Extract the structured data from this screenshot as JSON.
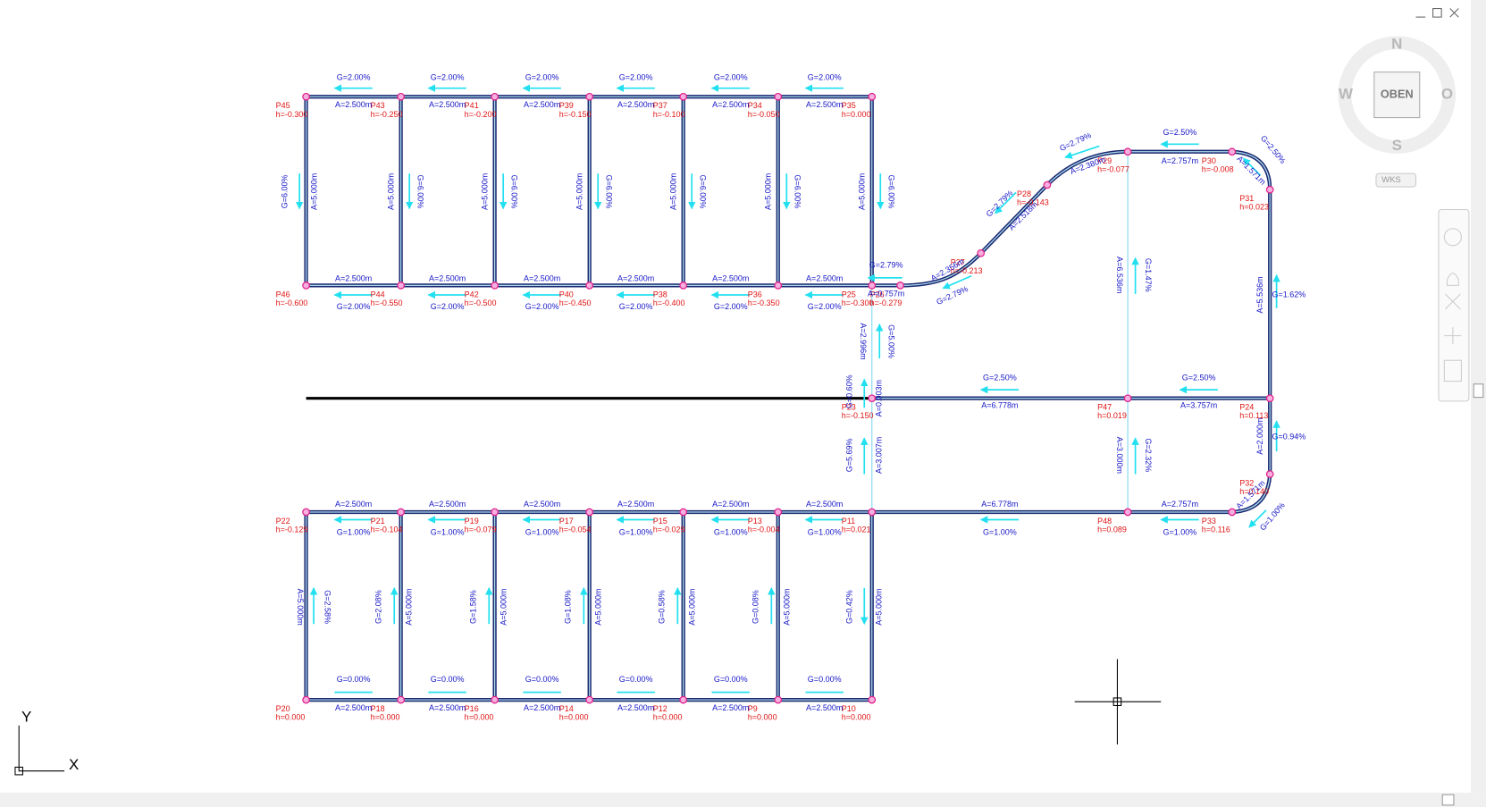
{
  "viewcube": {
    "north": "N",
    "west": "W",
    "east": "O",
    "south": "S",
    "face": "OBEN",
    "ucs": "WKS"
  },
  "ucs_icon": {
    "x": "X",
    "y": "Y"
  },
  "points": [
    {
      "name": "P45",
      "h": "h=-0.300"
    },
    {
      "name": "P43",
      "h": "h=-0.250"
    },
    {
      "name": "P41",
      "h": "h=-0.200"
    },
    {
      "name": "P39",
      "h": "h=-0.150"
    },
    {
      "name": "P37",
      "h": "h=-0.100"
    },
    {
      "name": "P34",
      "h": "h=-0.050"
    },
    {
      "name": "P35",
      "h": "h=0.000"
    },
    {
      "name": "P46",
      "h": "h=-0.600"
    },
    {
      "name": "P44",
      "h": "h=-0.550"
    },
    {
      "name": "P42",
      "h": "h=-0.500"
    },
    {
      "name": "P40",
      "h": "h=-0.450"
    },
    {
      "name": "P38",
      "h": "h=-0.400"
    },
    {
      "name": "P36",
      "h": "h=-0.350"
    },
    {
      "name": "P25",
      "h": "h=-0.300"
    },
    {
      "name": "P26",
      "h": "h=-0.279"
    },
    {
      "name": "P27",
      "h": "h=-0.213"
    },
    {
      "name": "P28",
      "h": "h=-0.143"
    },
    {
      "name": "P29",
      "h": "h=-0.077"
    },
    {
      "name": "P30",
      "h": "h=-0.008"
    },
    {
      "name": "P31",
      "h": "h=0.023"
    },
    {
      "name": "P23",
      "h": "h=-0.150"
    },
    {
      "name": "P47",
      "h": "h=0.019"
    },
    {
      "name": "P24",
      "h": "h=0.113"
    },
    {
      "name": "P32",
      "h": "h=0.140"
    },
    {
      "name": "P22",
      "h": "h=-0.129"
    },
    {
      "name": "P21",
      "h": "h=-0.104"
    },
    {
      "name": "P19",
      "h": "h=-0.079"
    },
    {
      "name": "P17",
      "h": "h=-0.054"
    },
    {
      "name": "P15",
      "h": "h=-0.029"
    },
    {
      "name": "P13",
      "h": "h=-0.004"
    },
    {
      "name": "P11",
      "h": "h=0.021"
    },
    {
      "name": "P48",
      "h": "h=0.089"
    },
    {
      "name": "P33",
      "h": "h=0.116"
    },
    {
      "name": "P20",
      "h": "h=0.000"
    },
    {
      "name": "P18",
      "h": "h=0.000"
    },
    {
      "name": "P16",
      "h": "h=0.000"
    },
    {
      "name": "P14",
      "h": "h=0.000"
    },
    {
      "name": "P12",
      "h": "h=0.000"
    },
    {
      "name": "P9",
      "h": "h=0.000"
    },
    {
      "name": "P10",
      "h": "h=0.000"
    }
  ],
  "lengths": [
    "A=2.500m",
    "A=2.500m",
    "A=2.500m",
    "A=2.500m",
    "A=2.500m",
    "A=2.500m",
    "A=2.500m",
    "A=2.500m",
    "A=2.500m",
    "A=2.500m",
    "A=2.500m",
    "A=2.500m",
    "A=5.000m",
    "A=5.000m",
    "A=5.000m",
    "A=5.000m",
    "A=5.000m",
    "A=5.000m",
    "A=5.000m",
    "A=0.757m",
    "A=2.356m",
    "A=2.518m",
    "A=2.380m",
    "A=2.757m",
    "A=1.571m",
    "A=5.536m",
    "A=6.536m",
    "A=2.996m",
    "A=0.003m",
    "A=6.778m",
    "A=3.757m",
    "A=3.007m",
    "A=3.000m",
    "A=2.000m",
    "A=1.571m",
    "A=2.500m",
    "A=2.500m",
    "A=2.500m",
    "A=2.500m",
    "A=2.500m",
    "A=2.500m",
    "A=6.778m",
    "A=2.757m",
    "A=5.000m",
    "A=5.000m",
    "A=5.000m",
    "A=5.000m",
    "A=5.000m",
    "A=5.000m",
    "A=5.000m",
    "A=2.500m",
    "A=2.500m",
    "A=2.500m",
    "A=2.500m",
    "A=2.500m",
    "A=2.500m"
  ],
  "grades": [
    "G=2.00%",
    "G=2.00%",
    "G=2.00%",
    "G=2.00%",
    "G=2.00%",
    "G=2.00%",
    "G=2.00%",
    "G=2.00%",
    "G=2.00%",
    "G=2.00%",
    "G=2.00%",
    "G=2.00%",
    "G=6.00%",
    "G=6.00%",
    "G=6.00%",
    "G=6.00%",
    "G=6.00%",
    "G=6.00%",
    "G=6.00%",
    "G=2.79%",
    "G=2.79%",
    "G=2.79%",
    "G=2.79%",
    "G=2.50%",
    "G=2.50%",
    "G=1.62%",
    "G=1.47%",
    "G=5.00%",
    "G=0.60%",
    "G=2.50%",
    "G=2.50%",
    "G=5.69%",
    "G=2.32%",
    "G=0.94%",
    "G=1.00%",
    "G=1.00%",
    "G=1.00%",
    "G=1.00%",
    "G=1.00%",
    "G=1.00%",
    "G=1.00%",
    "G=1.00%",
    "G=1.00%",
    "G=2.58%",
    "G=2.08%",
    "G=1.58%",
    "G=1.08%",
    "G=0.58%",
    "G=0.08%",
    "G=0.42%",
    "G=0.00%",
    "G=0.00%",
    "G=0.00%",
    "G=0.00%",
    "G=0.00%",
    "G=0.00%"
  ]
}
